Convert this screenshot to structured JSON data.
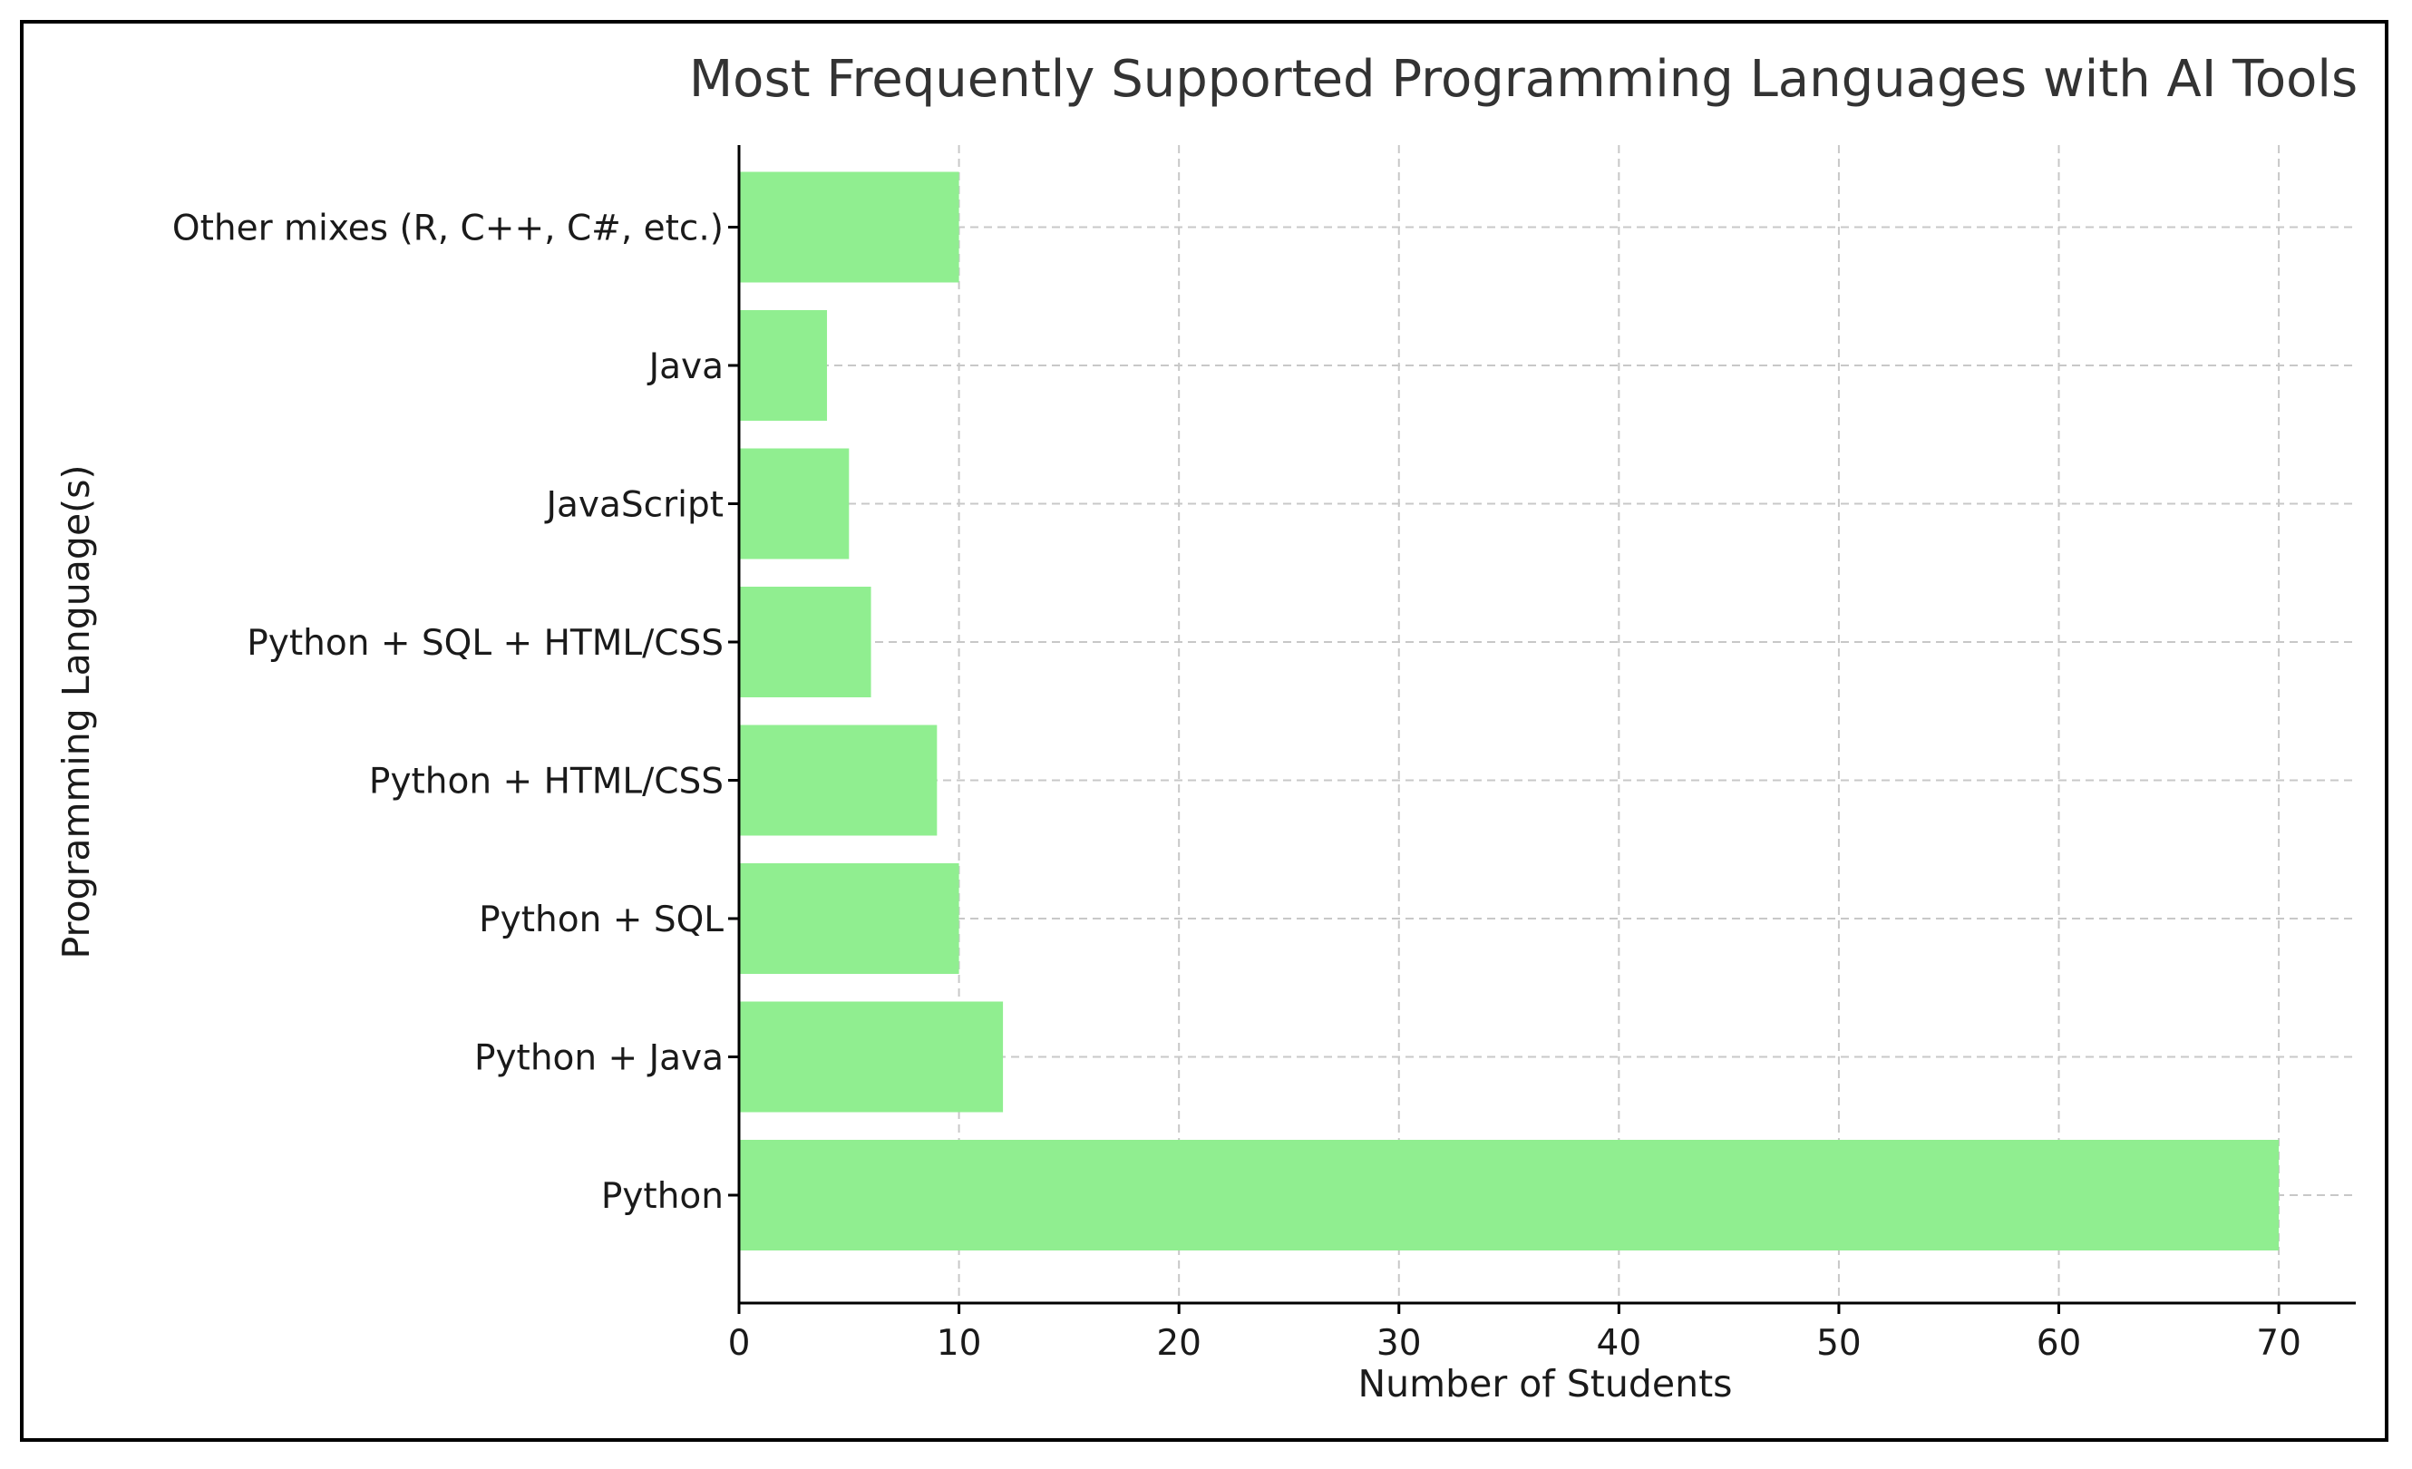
{
  "chart_data": {
    "type": "bar",
    "orientation": "horizontal",
    "title": "Most Frequently Supported Programming Languages with AI Tools",
    "xlabel": "Number of Students",
    "ylabel": "Programming Language(s)",
    "categories": [
      "Python",
      "Python + Java",
      "Python + SQL",
      "Python + HTML/CSS",
      "Python + SQL + HTML/CSS",
      "JavaScript",
      "Java",
      "Other mixes (R, C++, C#, etc.)"
    ],
    "values": [
      70,
      12,
      10,
      9,
      6,
      5,
      4,
      10
    ],
    "xlim": [
      0,
      73.5
    ],
    "xticks": [
      0,
      10,
      20,
      30,
      40,
      50,
      60,
      70
    ],
    "grid": true,
    "bar_color": "#90ee90",
    "grid_color": "#c8c8c8"
  }
}
